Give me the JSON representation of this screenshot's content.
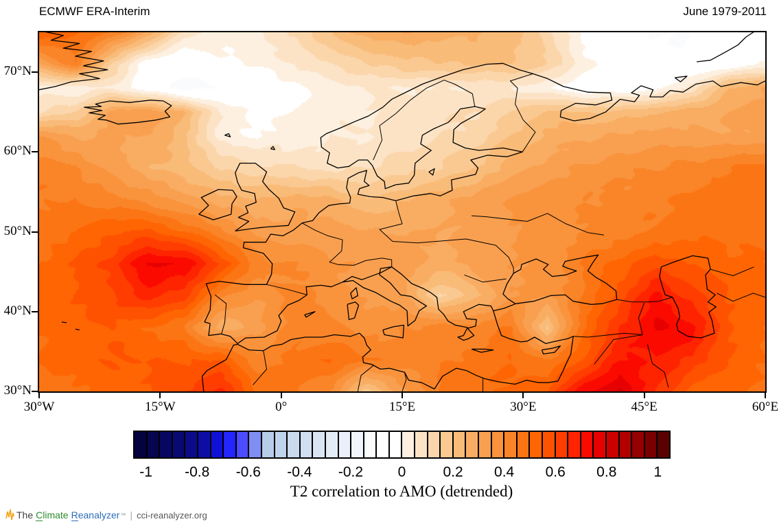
{
  "header": {
    "title": "ECMWF ERA-Interim",
    "period": "June 1979-2011"
  },
  "caption": "T2 correlation to AMO (detrended)",
  "footer": {
    "the": "The",
    "climate_lead": "C",
    "climate_rest": "limate",
    "reanalyzer_lead": "R",
    "reanalyzer_rest": "eanalyzer",
    "tm": "™",
    "sep": "|",
    "site": "cci-reanalyzer.org"
  },
  "chart_data": {
    "type": "heatmap",
    "title": "ECMWF ERA-Interim",
    "period": "June 1979-2011",
    "variable": "T2 correlation to AMO (detrended)",
    "projection": "equirectangular",
    "grid_lines": false,
    "x_axis": {
      "kind": "longitude",
      "range": [
        -30,
        60
      ],
      "ticks": [
        {
          "value": -30,
          "label": "30°W"
        },
        {
          "value": -15,
          "label": "15°W"
        },
        {
          "value": 0,
          "label": "0°"
        },
        {
          "value": 15,
          "label": "15°E"
        },
        {
          "value": 30,
          "label": "30°E"
        },
        {
          "value": 45,
          "label": "45°E"
        },
        {
          "value": 60,
          "label": "60°E"
        }
      ]
    },
    "y_axis": {
      "kind": "latitude",
      "range": [
        30,
        75
      ],
      "ticks": [
        {
          "value": 30,
          "label": "30°N"
        },
        {
          "value": 40,
          "label": "40°N"
        },
        {
          "value": 50,
          "label": "50°N"
        },
        {
          "value": 60,
          "label": "60°N"
        },
        {
          "value": 70,
          "label": "70°N"
        }
      ]
    },
    "colorbar": {
      "min": -1.05,
      "max": 1.05,
      "step": 0.05,
      "position": "bottom",
      "tick_values": [
        -1,
        -0.8,
        -0.6,
        -0.4,
        -0.2,
        0,
        0.2,
        0.4,
        0.6,
        0.8,
        1
      ],
      "tick_labels": [
        "-1",
        "-0.8",
        "-0.6",
        "-0.4",
        "-0.2",
        "0",
        "0.2",
        "0.4",
        "0.6",
        "0.8",
        "1"
      ],
      "colors": [
        "#03033f",
        "#050550",
        "#070762",
        "#090974",
        "#0b0b8a",
        "#0d0da6",
        "#1010d8",
        "#2424ff",
        "#4c4cff",
        "#7e8ef2",
        "#b7cce9",
        "#c0d3ec",
        "#c9d9ee",
        "#d2dff1",
        "#dae5f4",
        "#e2ebf6",
        "#eaf0f9",
        "#f2f5fb",
        "#f9fbfd",
        "#ffffff",
        "#ffffff",
        "#fdf0e0",
        "#fce3c6",
        "#fbd6ab",
        "#fac991",
        "#f9bb78",
        "#f9ad62",
        "#f9a050",
        "#f9933c",
        "#fa8528",
        "#fc7514",
        "#ff6502",
        "#ff5200",
        "#ff3d00",
        "#ff2400",
        "#fb0a00",
        "#e60000",
        "#cd0000",
        "#b20000",
        "#970000",
        "#7a0000",
        "#5c0000"
      ]
    },
    "grid": {
      "lons": [
        -30,
        -25.5,
        -21,
        -16.5,
        -12,
        -7.5,
        -3,
        1.5,
        6,
        10.5,
        15,
        19.5,
        24,
        28.5,
        33,
        37.5,
        42,
        46.5,
        51,
        55.5,
        60
      ],
      "lats": [
        30,
        34,
        38,
        42,
        46,
        50,
        54,
        58,
        62,
        65,
        68,
        71,
        75
      ],
      "values": [
        [
          0.45,
          0.5,
          0.52,
          0.55,
          0.6,
          0.66,
          0.5,
          0.46,
          0.4,
          0.18,
          0.33,
          0.45,
          0.5,
          0.5,
          0.55,
          0.75,
          0.8,
          0.65,
          0.52,
          0.5,
          0.5
        ],
        [
          0.5,
          0.52,
          0.55,
          0.55,
          0.55,
          0.55,
          0.42,
          0.46,
          0.5,
          0.46,
          0.42,
          0.44,
          0.47,
          0.5,
          0.44,
          0.55,
          0.7,
          0.7,
          0.64,
          0.55,
          0.5
        ],
        [
          0.5,
          0.52,
          0.55,
          0.5,
          0.45,
          0.26,
          0.32,
          0.42,
          0.42,
          0.38,
          0.4,
          0.42,
          0.42,
          0.45,
          0.18,
          0.5,
          0.65,
          0.76,
          0.72,
          0.55,
          0.5
        ],
        [
          0.52,
          0.55,
          0.6,
          0.68,
          0.62,
          0.42,
          0.35,
          0.42,
          0.38,
          0.34,
          0.32,
          0.14,
          0.22,
          0.35,
          0.35,
          0.45,
          0.58,
          0.72,
          0.62,
          0.55,
          0.52
        ],
        [
          0.5,
          0.55,
          0.62,
          0.76,
          0.75,
          0.6,
          0.42,
          0.4,
          0.36,
          0.33,
          0.33,
          0.28,
          0.32,
          0.35,
          0.36,
          0.45,
          0.52,
          0.58,
          0.55,
          0.52,
          0.5
        ],
        [
          0.48,
          0.5,
          0.55,
          0.56,
          0.5,
          0.42,
          0.33,
          0.32,
          0.33,
          0.3,
          0.3,
          0.3,
          0.32,
          0.35,
          0.38,
          0.4,
          0.43,
          0.45,
          0.48,
          0.48,
          0.48
        ],
        [
          0.45,
          0.45,
          0.42,
          0.38,
          0.32,
          0.27,
          0.26,
          0.28,
          0.27,
          0.2,
          0.24,
          0.28,
          0.32,
          0.36,
          0.38,
          0.4,
          0.42,
          0.44,
          0.46,
          0.48,
          0.5
        ],
        [
          0.43,
          0.4,
          0.33,
          0.26,
          0.22,
          0.15,
          0.12,
          0.1,
          0.08,
          0.1,
          0.12,
          0.15,
          0.2,
          0.28,
          0.32,
          0.36,
          0.38,
          0.4,
          0.42,
          0.45,
          0.48
        ],
        [
          0.35,
          0.3,
          0.3,
          0.3,
          0.22,
          0.02,
          0.0,
          0.02,
          0.04,
          0.05,
          0.07,
          0.1,
          0.12,
          0.2,
          0.26,
          0.3,
          0.3,
          0.32,
          0.32,
          0.3,
          0.32
        ],
        [
          0.1,
          0.15,
          0.32,
          0.35,
          0.25,
          0.05,
          -0.02,
          0.0,
          0.03,
          0.05,
          0.08,
          0.08,
          0.1,
          0.15,
          0.22,
          0.2,
          0.22,
          0.25,
          0.28,
          0.3,
          0.32
        ],
        [
          0.02,
          0.0,
          0.05,
          -0.05,
          -0.12,
          -0.1,
          -0.06,
          -0.02,
          0.02,
          0.05,
          0.05,
          0.05,
          0.06,
          0.05,
          0.0,
          -0.05,
          -0.05,
          -0.02,
          0.08,
          0.25,
          0.3
        ],
        [
          0.3,
          0.45,
          0.15,
          -0.05,
          -0.08,
          -0.02,
          0.0,
          0.05,
          0.1,
          0.15,
          0.18,
          0.2,
          0.2,
          0.2,
          0.15,
          0.02,
          -0.05,
          -0.08,
          -0.08,
          -0.05,
          0.0
        ],
        [
          0.55,
          0.5,
          0.45,
          0.3,
          0.08,
          0.03,
          0.05,
          0.1,
          0.2,
          0.27,
          0.3,
          0.27,
          0.26,
          0.24,
          0.12,
          -0.02,
          -0.08,
          -0.1,
          -0.1,
          -0.08,
          -0.02
        ]
      ]
    },
    "notable_features": [
      {
        "region": "North Atlantic west of Biscay (~45N 14W)",
        "correlation": 0.78
      },
      {
        "region": "Caucasus / south Caspian (~39N 48E)",
        "correlation": 0.8
      },
      {
        "region": "Mesopotamia / Middle East (~31N 39E)",
        "correlation": 0.82
      },
      {
        "region": "Atlas Morocco (~31N 7W)",
        "correlation": 0.68
      },
      {
        "region": "Norwegian Sea band (66-70N)",
        "correlation": -0.1
      },
      {
        "region": "Barents Sea / top-right corner",
        "correlation": -0.1
      },
      {
        "region": "Scandinavia interior",
        "correlation": 0.05
      },
      {
        "region": "Balkans (~42N 20E)",
        "correlation": 0.14
      },
      {
        "region": "Central Anatolia (~39N 33E)",
        "correlation": 0.2
      },
      {
        "region": "Most of Europe and Mediterranean",
        "correlation": 0.4
      }
    ]
  }
}
